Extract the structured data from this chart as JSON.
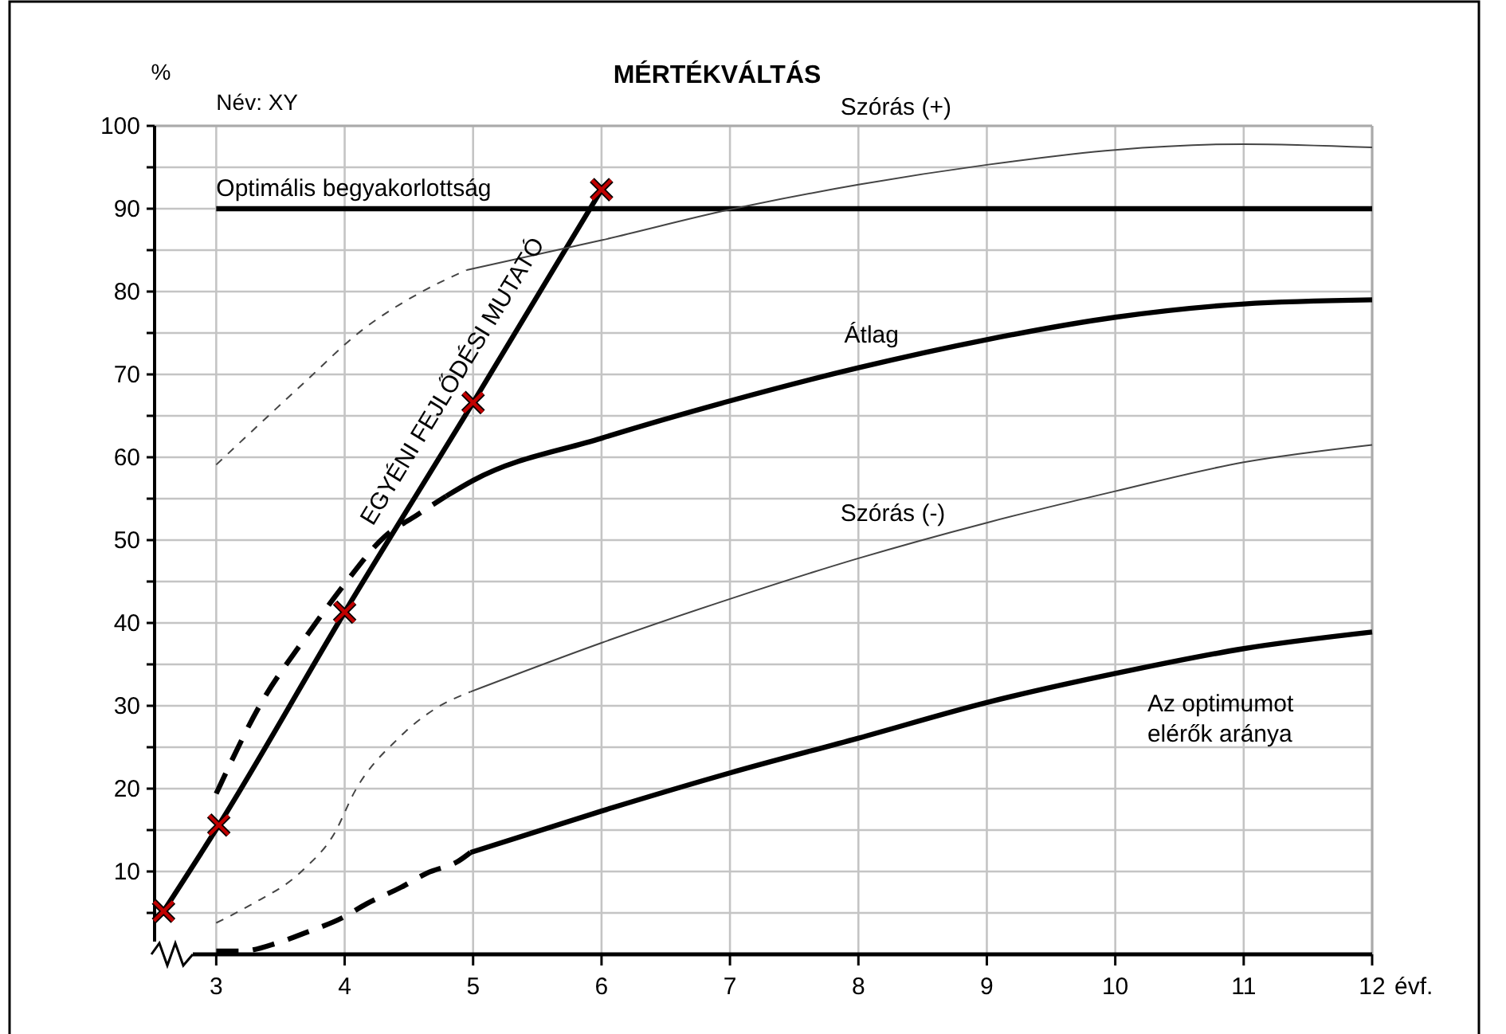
{
  "chart_data": {
    "type": "line",
    "title": "MÉRTÉKVÁLTÁS",
    "xlabel": "évf.",
    "ylabel": "%",
    "annotations": [
      "Név: XY"
    ],
    "xlim": [
      2.52,
      12
    ],
    "xticks": [
      3,
      4,
      5,
      6,
      7,
      8,
      9,
      10,
      11,
      12
    ],
    "ylim": [
      0,
      100
    ],
    "yticks": [
      {
        "value": 5,
        "label": null
      },
      10,
      {
        "value": 15,
        "label": null
      },
      20,
      {
        "value": 25,
        "label": null
      },
      30,
      {
        "value": 35,
        "label": null
      },
      40,
      {
        "value": 45,
        "label": null
      },
      50,
      {
        "value": 55,
        "label": null
      },
      60,
      {
        "value": 65,
        "label": null
      },
      70,
      {
        "value": 75,
        "label": null
      },
      80,
      {
        "value": 85,
        "label": null
      },
      90,
      {
        "value": 95,
        "label": null
      },
      100
    ],
    "grid": true,
    "legend": false,
    "series": [
      {
        "name": "Optimális begyakorlottság",
        "color": "#000000",
        "x": [
          3,
          12
        ],
        "values": [
          90,
          90
        ]
      },
      {
        "name": "EGYÉNI FEJLŐDÉSI MUTATÓ",
        "color": "#000000",
        "marker": "cross",
        "x": [
          2.59,
          3.02,
          4,
          5,
          6
        ],
        "values": [
          5.2,
          15.6,
          41.3,
          66.6,
          92.3
        ]
      },
      {
        "type": "scatter",
        "marker": "cross",
        "color": "#c00000",
        "x": [
          2.59,
          3.02,
          4,
          5,
          6
        ],
        "values": [
          5.2,
          15.6,
          41.3,
          66.6,
          92.3
        ]
      },
      {
        "color": "#000000",
        "line_style": "dashed",
        "x": [
          3,
          3.36,
          3.67,
          4,
          4.31,
          4.56,
          4.79
        ],
        "values": [
          19.4,
          30.6,
          37.7,
          44.7,
          50.4,
          53,
          55.3
        ]
      },
      {
        "name": "Átlag",
        "color": "#000000",
        "x": [
          4.79,
          5,
          6,
          7,
          8,
          9,
          10,
          11,
          12
        ],
        "values": [
          55.3,
          57.2,
          62.3,
          66.8,
          70.8,
          74.2,
          76.9,
          78.5,
          79
        ]
      },
      {
        "color": "#444444",
        "line_style": "dashed",
        "x": [
          3,
          3.65,
          4.14,
          4.64,
          4.95
        ],
        "values": [
          59.1,
          68.5,
          75.4,
          80.3,
          82.6
        ]
      },
      {
        "name": "Szórás (+)",
        "color": "#444444",
        "x": [
          4.95,
          6,
          7,
          8,
          9,
          10,
          11,
          12
        ],
        "values": [
          82.6,
          86.2,
          89.9,
          92.9,
          95.3,
          97.1,
          97.8,
          97.4
        ]
      },
      {
        "color": "#444444",
        "line_style": "dashed",
        "x": [
          3,
          3.26,
          3.67,
          3.92,
          4.08,
          4.42,
          4.7,
          4.98
        ],
        "values": [
          3.8,
          5.9,
          10.1,
          14.6,
          19.7,
          26.1,
          29.6,
          31.7
        ]
      },
      {
        "name": "Szórás (-)",
        "color": "#444444",
        "x": [
          4.98,
          6,
          7,
          8,
          9,
          10,
          11,
          12
        ],
        "values": [
          31.7,
          37.6,
          42.9,
          47.8,
          52.1,
          55.9,
          59.4,
          61.5
        ]
      },
      {
        "color": "#000000",
        "line_style": "dashed",
        "x": [
          3,
          3.2,
          3.48,
          3.71,
          3.98,
          4.17,
          4.44,
          4.64,
          4.89,
          4.98
        ],
        "values": [
          0.4,
          0.4,
          1.4,
          2.7,
          4.4,
          6.1,
          8.1,
          9.8,
          11.3,
          12.3
        ]
      },
      {
        "name": "Az optimumot elérők aránya",
        "color": "#000000",
        "x": [
          4.98,
          6,
          7,
          8,
          9,
          10,
          11,
          12
        ],
        "values": [
          12.3,
          17.3,
          21.9,
          26.1,
          30.4,
          33.9,
          36.9,
          38.9
        ]
      }
    ]
  }
}
